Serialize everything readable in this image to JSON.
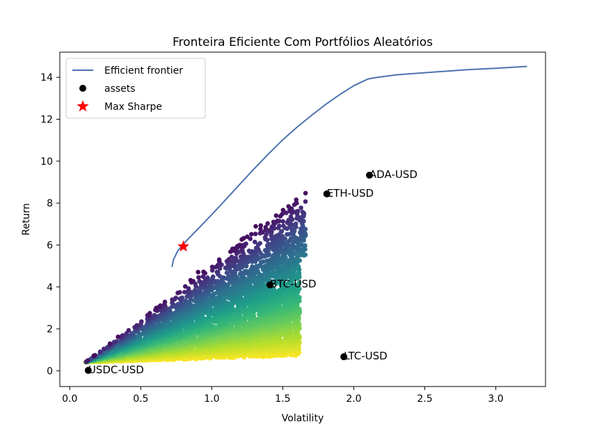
{
  "chart_data": {
    "type": "scatter",
    "title": "Fronteira Eficiente Com Portfólios Aleatórios",
    "xlabel": "Volatility",
    "ylabel": "Return",
    "xlim": [
      -0.07,
      3.35
    ],
    "ylim": [
      -0.75,
      15.2
    ],
    "xticks": [
      "0.0",
      "0.5",
      "1.0",
      "1.5",
      "2.0",
      "2.5",
      "3.0"
    ],
    "yticks": [
      "0",
      "2",
      "4",
      "6",
      "8",
      "10",
      "12",
      "14"
    ],
    "grid": false,
    "legend_position": "top-left",
    "legend": [
      {
        "label": "Efficient frontier",
        "marker": "line",
        "color": "#4c72b0"
      },
      {
        "label": "assets",
        "marker": "circle",
        "color": "#000000"
      },
      {
        "label": "Max Sharpe",
        "marker": "star",
        "color": "#ff0000"
      }
    ],
    "series": [
      {
        "name": "Efficient frontier",
        "type": "line",
        "color": "#4c72b0",
        "x": [
          0.72,
          0.73,
          0.76,
          0.8,
          0.9,
          1.0,
          1.1,
          1.2,
          1.3,
          1.4,
          1.5,
          1.6,
          1.7,
          1.8,
          1.9,
          2.0,
          2.1,
          2.15,
          2.3,
          2.5,
          2.8,
          3.0,
          3.22
        ],
        "y": [
          4.95,
          5.3,
          5.72,
          6.05,
          6.75,
          7.45,
          8.18,
          8.92,
          9.65,
          10.35,
          11.02,
          11.62,
          12.17,
          12.7,
          13.17,
          13.6,
          13.92,
          13.98,
          14.12,
          14.22,
          14.36,
          14.43,
          14.52
        ]
      },
      {
        "name": "assets",
        "type": "scatter",
        "color": "#000000",
        "points": [
          {
            "label": "ADA-USD",
            "x": 2.11,
            "y": 9.33
          },
          {
            "label": "ETH-USD",
            "x": 1.81,
            "y": 8.44
          },
          {
            "label": "BTC-USD",
            "x": 1.41,
            "y": 4.1
          },
          {
            "label": "LTC-USD",
            "x": 1.93,
            "y": 0.67
          },
          {
            "label": "USDC-USD",
            "x": 0.13,
            "y": 0.02
          }
        ]
      },
      {
        "name": "Max Sharpe",
        "type": "scatter",
        "marker": "star",
        "color": "#ff0000",
        "points": [
          {
            "x": 0.8,
            "y": 5.93
          }
        ]
      }
    ],
    "random_portfolios": {
      "colormap": "viridis",
      "color_by": "sharpe ratio",
      "region": {
        "lower_left": [
          0.1,
          0.4
        ],
        "upper_right": [
          1.66,
          8.9
        ],
        "right_edge_x": 1.62,
        "bottom_right": [
          1.6,
          0.5
        ]
      }
    }
  }
}
